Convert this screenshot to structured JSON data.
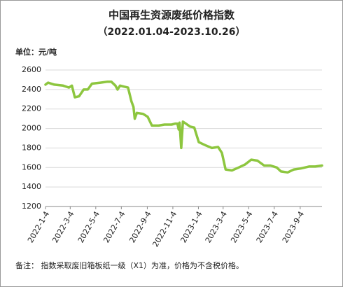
{
  "chart_data": {
    "type": "line",
    "title": "中国再生资源废纸价格指数",
    "subtitle": "（2022.01.04-2023.10.26）",
    "y_unit": "单位：元/吨",
    "note": "备注：  指数采取废旧箱板纸一级（X1）为准，价格为不含税价格。",
    "color": "#8dc63f",
    "x": [
      "2022-01-04",
      "2022-01-10",
      "2022-01-25",
      "2022-02-15",
      "2022-03-01",
      "2022-03-08",
      "2022-03-15",
      "2022-03-25",
      "2022-04-05",
      "2022-04-15",
      "2022-04-25",
      "2022-05-15",
      "2022-06-01",
      "2022-06-10",
      "2022-06-20",
      "2022-06-25",
      "2022-07-01",
      "2022-07-10",
      "2022-07-20",
      "2022-07-28",
      "2022-08-02",
      "2022-08-05",
      "2022-08-10",
      "2022-08-25",
      "2022-09-05",
      "2022-09-15",
      "2022-10-01",
      "2022-10-15",
      "2022-11-01",
      "2022-11-10",
      "2022-11-15",
      "2022-11-18",
      "2022-11-20",
      "2022-11-24",
      "2022-11-28",
      "2022-12-05",
      "2022-12-15",
      "2022-12-25",
      "2023-01-05",
      "2023-01-20",
      "2023-02-05",
      "2023-02-20",
      "2023-03-01",
      "2023-03-10",
      "2023-03-25",
      "2023-04-10",
      "2023-04-25",
      "2023-05-10",
      "2023-05-25",
      "2023-06-10",
      "2023-06-25",
      "2023-07-10",
      "2023-07-20",
      "2023-08-05",
      "2023-08-20",
      "2023-09-05",
      "2023-09-25",
      "2023-10-10",
      "2023-10-26"
    ],
    "values": [
      2450,
      2470,
      2450,
      2440,
      2420,
      2440,
      2320,
      2330,
      2400,
      2400,
      2460,
      2470,
      2480,
      2480,
      2440,
      2400,
      2440,
      2430,
      2420,
      2280,
      2220,
      2100,
      2160,
      2150,
      2120,
      2030,
      2030,
      2040,
      2040,
      2050,
      2050,
      1990,
      2060,
      1800,
      2070,
      2050,
      2020,
      2010,
      1860,
      1830,
      1800,
      1810,
      1750,
      1580,
      1570,
      1600,
      1630,
      1680,
      1670,
      1620,
      1620,
      1600,
      1560,
      1550,
      1580,
      1590,
      1610,
      1610,
      1620
    ],
    "xlim": [
      "2022-01-04",
      "2023-10-26"
    ],
    "xticks": [
      {
        "value": "2022-01-04",
        "label": "2022-1-4"
      },
      {
        "value": "2022-03-04",
        "label": "2022-3-4"
      },
      {
        "value": "2022-05-04",
        "label": "2022-5-4"
      },
      {
        "value": "2022-07-04",
        "label": "2022-7-4"
      },
      {
        "value": "2022-09-04",
        "label": "2022-9-4"
      },
      {
        "value": "2022-11-04",
        "label": "2022-11-4"
      },
      {
        "value": "2023-01-04",
        "label": "2023-1-4"
      },
      {
        "value": "2023-03-04",
        "label": "2023-3-4"
      },
      {
        "value": "2023-05-04",
        "label": "2023-5-4"
      },
      {
        "value": "2023-07-04",
        "label": "2023-7-4"
      },
      {
        "value": "2023-09-04",
        "label": "2023-9-4"
      }
    ],
    "ylim": [
      1200,
      2600
    ],
    "yticks": [
      1200,
      1400,
      1600,
      1800,
      2000,
      2200,
      2400,
      2600
    ],
    "grid": true
  }
}
